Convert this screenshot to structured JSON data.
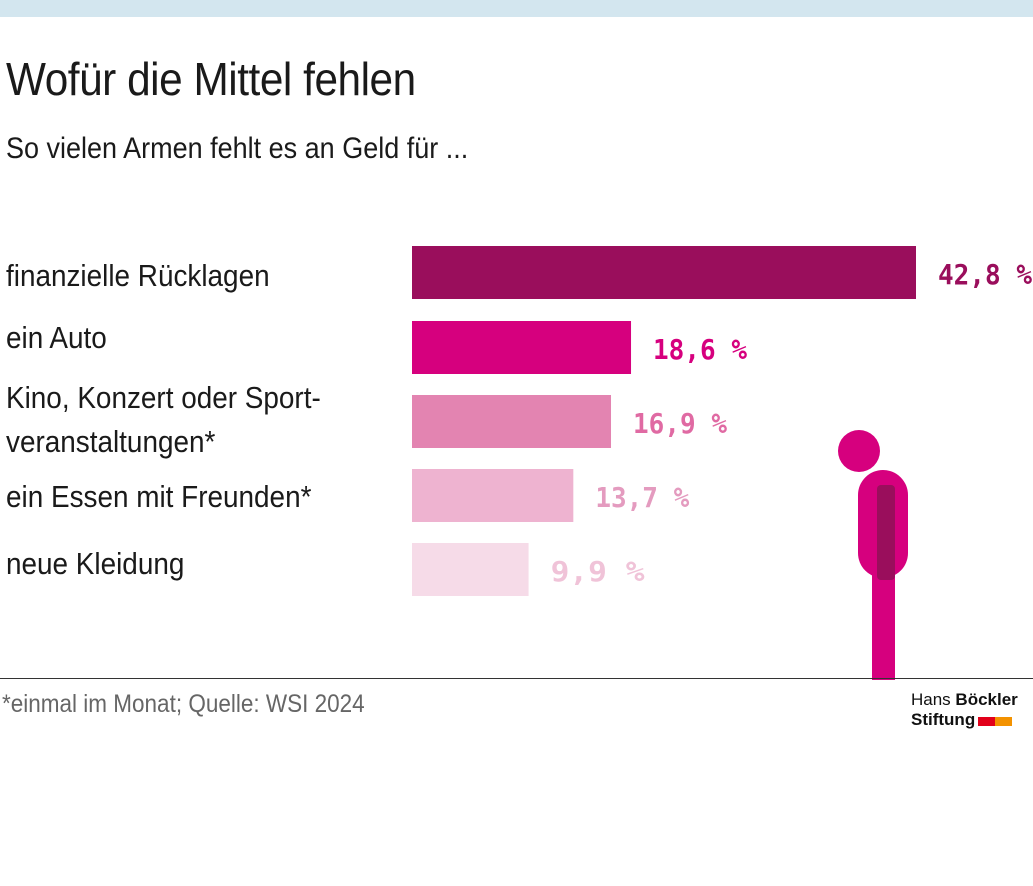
{
  "header": {
    "title": "Wofür die Mittel fehlen",
    "subtitle": "So vielen Armen fehlt es an Geld für  ..."
  },
  "chart_data": {
    "type": "bar",
    "orientation": "horizontal",
    "title": "Wofür die Mittel fehlen",
    "subtitle": "So vielen Armen fehlt es an Geld für  ...",
    "categories": [
      [
        "finanzielle Rücklagen"
      ],
      [
        "ein Auto"
      ],
      [
        "Kino, Konzert oder Sport-",
        "veranstaltungen*"
      ],
      [
        "ein Essen mit Freunden*"
      ],
      [
        "neue Kleidung"
      ]
    ],
    "values": [
      42.8,
      18.6,
      16.9,
      13.7,
      9.9
    ],
    "value_labels": [
      "42,8 %",
      "18,6 %",
      "16,9 %",
      "13,7 %",
      "9,9 %"
    ],
    "unit": "%",
    "colors": [
      "#9a0e5c",
      "#d6007e",
      "#e384b1",
      "#eeb3d0",
      "#f6dbe8"
    ],
    "label_colors": [
      "#9a0e5c",
      "#d6007e",
      "#e06aa3",
      "#e49bbf",
      "#f0c3d8"
    ],
    "xlim": [
      0,
      42.8
    ],
    "grid": false,
    "legend": "none"
  },
  "figure": {
    "head_color": "#d6007e",
    "body_color": "#d6007e",
    "arm_color": "#9a0e5c"
  },
  "footer": {
    "note": "*einmal im Monat; Quelle: WSI 2024",
    "logo_line1_a": "Hans ",
    "logo_line1_b": "Böckler",
    "logo_line2": "Stiftung",
    "logo_colors": [
      "#e2001a",
      "#f39200"
    ]
  }
}
